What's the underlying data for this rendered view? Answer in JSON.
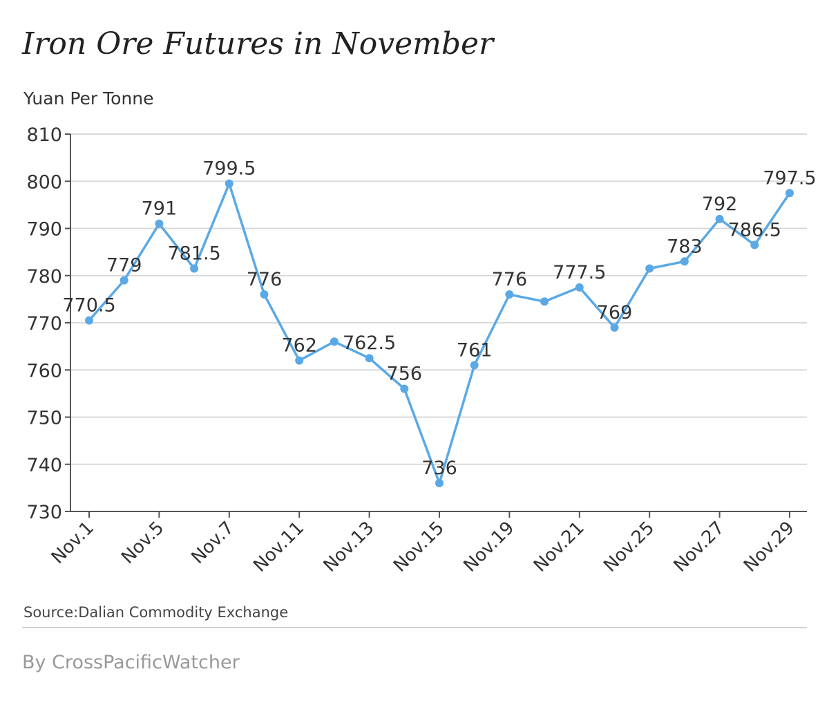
{
  "chart_data": {
    "type": "line",
    "title": "Iron Ore Futures in November",
    "ylabel": "Yuan Per Tonne",
    "xlabel": "",
    "ylim": [
      730,
      810
    ],
    "y_ticks": [
      730,
      740,
      750,
      760,
      770,
      780,
      790,
      800,
      810
    ],
    "x_tick_labels": [
      "Nov.1",
      "Nov.5",
      "Nov.7",
      "Nov.11",
      "Nov.13",
      "Nov.15",
      "Nov.19",
      "Nov.21",
      "Nov.25",
      "Nov.27",
      "Nov.29"
    ],
    "grid": true,
    "series": [
      {
        "color": "#5aa9e6",
        "values": [
          770.5,
          779,
          791,
          781.5,
          799.5,
          776,
          762,
          766,
          762.5,
          756,
          736,
          761,
          776,
          774.5,
          777.5,
          769,
          781.5,
          783,
          792,
          786.5,
          797.5
        ],
        "labels": [
          "770.5",
          "779",
          "791",
          "781.5",
          "799.5",
          "776",
          "762",
          "",
          "762.5",
          "756",
          "736",
          "761",
          "776",
          "",
          "777.5",
          "769",
          "",
          "783",
          "792",
          "786.5",
          "797.5"
        ]
      }
    ]
  },
  "source": "Source:Dalian Commodity Exchange",
  "byline": "By CrossPacificWatcher"
}
